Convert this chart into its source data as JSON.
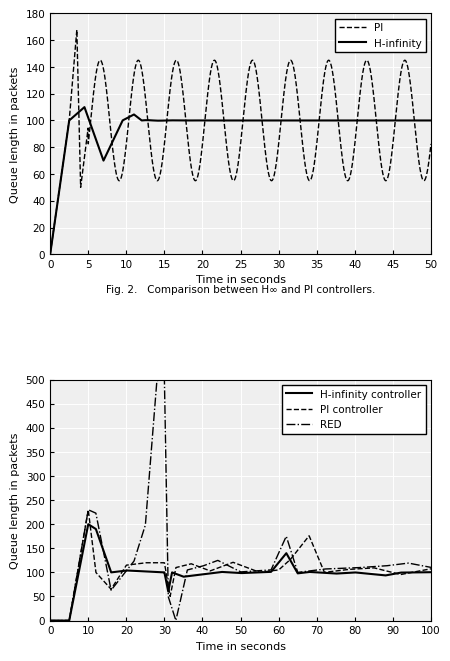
{
  "fig2": {
    "xlabel": "Time in seconds",
    "ylabel": "Queue length in packets",
    "xlim": [
      0,
      50
    ],
    "ylim": [
      0,
      180
    ],
    "yticks": [
      0,
      20,
      40,
      60,
      80,
      100,
      120,
      140,
      160,
      180
    ],
    "xticks": [
      0,
      5,
      10,
      15,
      20,
      25,
      30,
      35,
      40,
      45,
      50
    ],
    "legend": [
      "PI",
      "H-infinity"
    ],
    "caption": "Fig. 2.   Comparison between H∞ and PI controllers."
  },
  "fig3": {
    "xlabel": "Time in seconds",
    "ylabel": "Queue length in packets",
    "xlim": [
      0,
      100
    ],
    "ylim": [
      0,
      500
    ],
    "yticks": [
      0,
      50,
      100,
      150,
      200,
      250,
      300,
      350,
      400,
      450,
      500
    ],
    "xticks": [
      0,
      10,
      20,
      30,
      40,
      50,
      60,
      70,
      80,
      90,
      100
    ],
    "legend": [
      "H-infinity controller",
      "PI controller",
      "RED"
    ]
  },
  "bg_color": "#efefef",
  "font_size": 8,
  "tick_size": 7.5
}
